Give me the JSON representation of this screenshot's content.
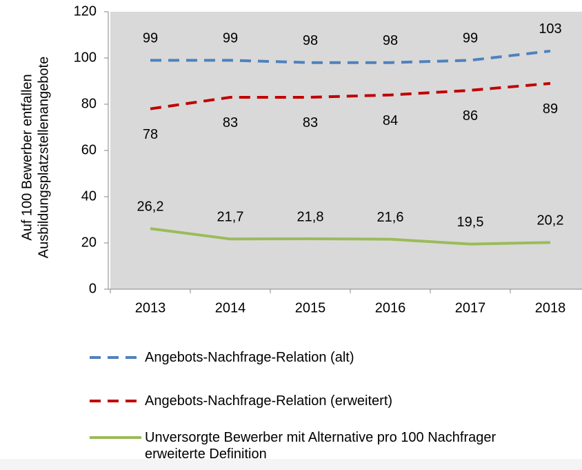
{
  "chart_data": {
    "type": "line",
    "ylabel": [
      "Auf 100 Bewerber entfallen",
      "Ausbildungsplatzstellenangebote"
    ],
    "categories": [
      "2013",
      "2014",
      "2015",
      "2016",
      "2017",
      "2018"
    ],
    "series": [
      {
        "name": "Angebots-Nachfrage-Relation (alt)",
        "color": "#4f81bd",
        "dashed": true,
        "label_position": "above",
        "values": [
          99,
          99,
          98,
          98,
          99,
          103
        ]
      },
      {
        "name": "Angebots-Nachfrage-Relation (erweitert)",
        "color": "#c00000",
        "dashed": true,
        "label_position": "below",
        "values": [
          78,
          83,
          83,
          84,
          86,
          89
        ]
      },
      {
        "name": "Unversorgte Bewerber mit Alternative pro 100 Nachfrager erweiterte Definition",
        "color": "#9bbb59",
        "dashed": false,
        "label_position": "above",
        "values": [
          26.2,
          21.7,
          21.8,
          21.6,
          19.5,
          20.2
        ],
        "value_labels": [
          "26,2",
          "21,7",
          "21,8",
          "21,6",
          "19,5",
          "20,2"
        ]
      }
    ],
    "ylim": [
      0,
      120
    ],
    "yticks": [
      0,
      20,
      40,
      60,
      80,
      100,
      120
    ],
    "grid": false
  }
}
